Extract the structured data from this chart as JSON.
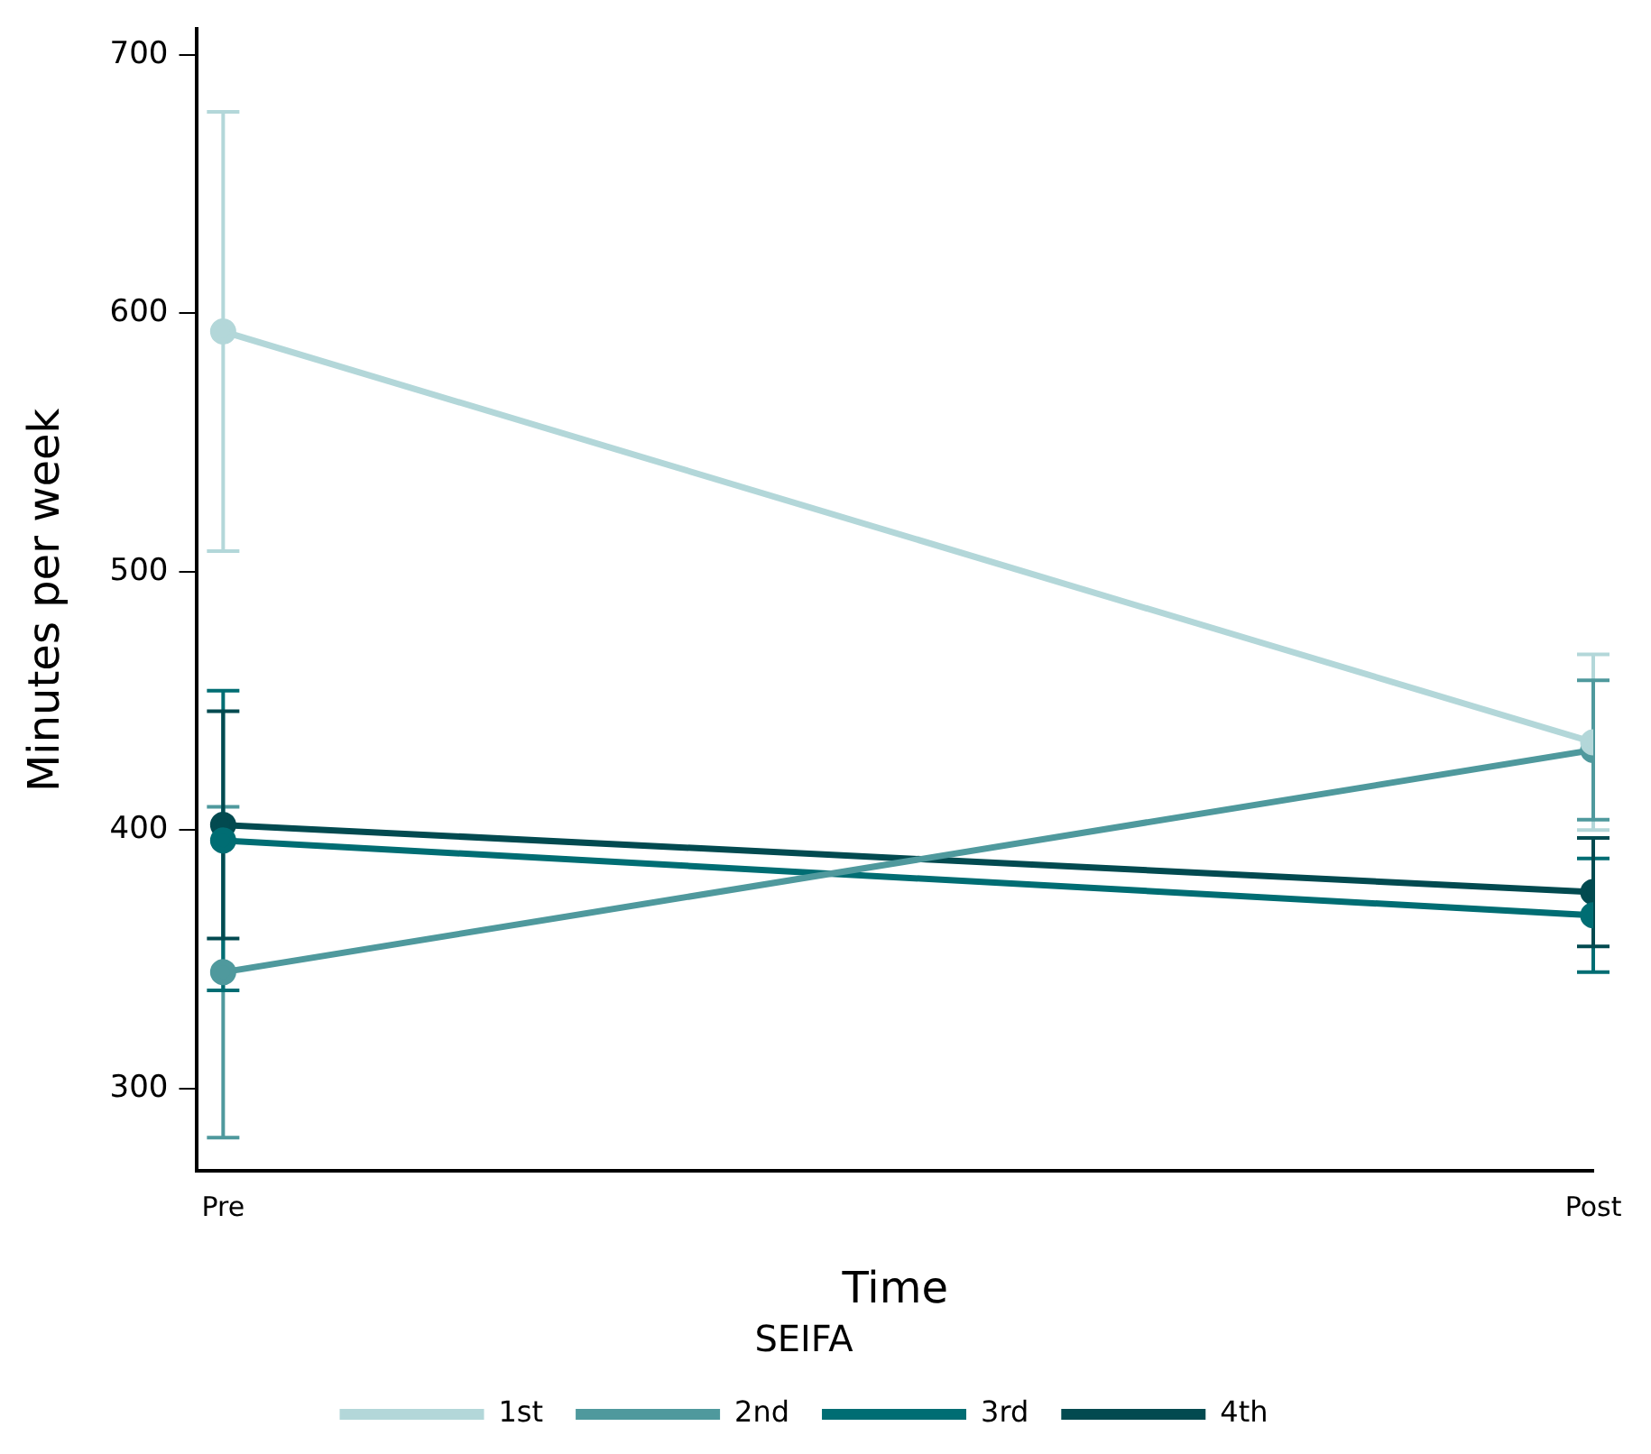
{
  "chart_data": {
    "type": "line",
    "xlabel": "Time",
    "ylabel": "Minutes per week",
    "legend_title": "SEIFA",
    "categories": [
      "Pre",
      "Post"
    ],
    "series": [
      {
        "name": "1st",
        "color": "#b3d7d9",
        "values": [
          593,
          434
        ],
        "errors": [
          85,
          34
        ]
      },
      {
        "name": "2nd",
        "color": "#4f999d",
        "values": [
          345,
          431
        ],
        "errors": [
          64,
          27
        ]
      },
      {
        "name": "3rd",
        "color": "#006d73",
        "values": [
          396,
          367
        ],
        "errors": [
          58,
          22
        ]
      },
      {
        "name": "4th",
        "color": "#024a50",
        "values": [
          402,
          376
        ],
        "errors": [
          44,
          21
        ]
      }
    ],
    "ylim": [
      268,
      710
    ],
    "yticks": [
      300,
      400,
      500,
      600,
      700
    ],
    "grid": false,
    "legend": "bottom",
    "marker": "circle",
    "line_style": "solid"
  }
}
